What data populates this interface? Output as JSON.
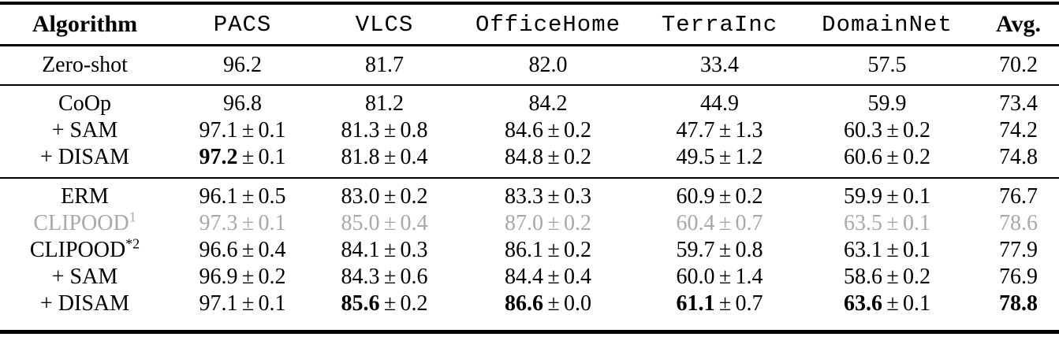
{
  "page": {
    "background": "#ffffff"
  },
  "colors": {
    "text": "#000000",
    "muted_row": "#a9a9a9",
    "rule": "#000000"
  },
  "symbols": {
    "plus_minus": "±"
  },
  "table": {
    "columns": [
      {
        "id": "algorithm",
        "label": "Algorithm",
        "font": "serif-bold"
      },
      {
        "id": "pacs",
        "label": "PACS",
        "font": "mono"
      },
      {
        "id": "vlcs",
        "label": "VLCS",
        "font": "mono"
      },
      {
        "id": "officehome",
        "label": "OfficeHome",
        "font": "mono"
      },
      {
        "id": "terrainc",
        "label": "TerraInc",
        "font": "mono"
      },
      {
        "id": "domainnet",
        "label": "DomainNet",
        "font": "mono"
      },
      {
        "id": "avg",
        "label": "Avg.",
        "font": "serif-bold"
      }
    ],
    "groups": [
      {
        "name": "zero-shot",
        "rows": [
          {
            "algorithm": {
              "text": "Zero-shot"
            },
            "muted": false,
            "cells": [
              {
                "mean": "96.2"
              },
              {
                "mean": "81.7"
              },
              {
                "mean": "82.0"
              },
              {
                "mean": "33.4"
              },
              {
                "mean": "57.5"
              },
              {
                "mean": "70.2"
              }
            ]
          }
        ]
      },
      {
        "name": "coop",
        "rows": [
          {
            "algorithm": {
              "text": "CoOp"
            },
            "muted": false,
            "cells": [
              {
                "mean": "96.8"
              },
              {
                "mean": "81.2"
              },
              {
                "mean": "84.2"
              },
              {
                "mean": "44.9"
              },
              {
                "mean": "59.9"
              },
              {
                "mean": "73.4"
              }
            ]
          },
          {
            "algorithm": {
              "text": "+ SAM"
            },
            "muted": false,
            "cells": [
              {
                "mean": "97.1",
                "std": "0.1"
              },
              {
                "mean": "81.3",
                "std": "0.8"
              },
              {
                "mean": "84.6",
                "std": "0.2"
              },
              {
                "mean": "47.7",
                "std": "1.3"
              },
              {
                "mean": "60.3",
                "std": "0.2"
              },
              {
                "mean": "74.2"
              }
            ]
          },
          {
            "algorithm": {
              "text": "+ DISAM"
            },
            "muted": false,
            "cells": [
              {
                "mean": "97.2",
                "std": "0.1",
                "bold": true
              },
              {
                "mean": "81.8",
                "std": "0.4"
              },
              {
                "mean": "84.8",
                "std": "0.2"
              },
              {
                "mean": "49.5",
                "std": "1.2"
              },
              {
                "mean": "60.6",
                "std": "0.2"
              },
              {
                "mean": "74.8"
              }
            ]
          }
        ]
      },
      {
        "name": "erm",
        "rows": [
          {
            "algorithm": {
              "text": "ERM"
            },
            "muted": false,
            "cells": [
              {
                "mean": "96.1",
                "std": "0.5"
              },
              {
                "mean": "83.0",
                "std": "0.2"
              },
              {
                "mean": "83.3",
                "std": "0.3"
              },
              {
                "mean": "60.9",
                "std": "0.2"
              },
              {
                "mean": "59.9",
                "std": "0.1"
              },
              {
                "mean": "76.7"
              }
            ]
          },
          {
            "algorithm": {
              "text": "CLIPOOD",
              "sup": "1"
            },
            "muted": true,
            "cells": [
              {
                "mean": "97.3",
                "std": "0.1"
              },
              {
                "mean": "85.0",
                "std": "0.4"
              },
              {
                "mean": "87.0",
                "std": "0.2"
              },
              {
                "mean": "60.4",
                "std": "0.7"
              },
              {
                "mean": "63.5",
                "std": "0.1"
              },
              {
                "mean": "78.6"
              }
            ]
          },
          {
            "algorithm": {
              "text": "CLIPOOD",
              "sup": "*2"
            },
            "muted": false,
            "cells": [
              {
                "mean": "96.6",
                "std": "0.4"
              },
              {
                "mean": "84.1",
                "std": "0.3"
              },
              {
                "mean": "86.1",
                "std": "0.2"
              },
              {
                "mean": "59.7",
                "std": "0.8"
              },
              {
                "mean": "63.1",
                "std": "0.1"
              },
              {
                "mean": "77.9"
              }
            ]
          },
          {
            "algorithm": {
              "text": "+ SAM"
            },
            "muted": false,
            "cells": [
              {
                "mean": "96.9",
                "std": "0.2"
              },
              {
                "mean": "84.3",
                "std": "0.6"
              },
              {
                "mean": "84.4",
                "std": "0.4"
              },
              {
                "mean": "60.0",
                "std": "1.4"
              },
              {
                "mean": "58.6",
                "std": "0.2"
              },
              {
                "mean": "76.9"
              }
            ]
          },
          {
            "algorithm": {
              "text": "+ DISAM"
            },
            "muted": false,
            "cells": [
              {
                "mean": "97.1",
                "std": "0.1"
              },
              {
                "mean": "85.6",
                "std": "0.2",
                "bold": true
              },
              {
                "mean": "86.6",
                "std": "0.0",
                "bold": true
              },
              {
                "mean": "61.1",
                "std": "0.7",
                "bold": true
              },
              {
                "mean": "63.6",
                "std": "0.1",
                "bold": true
              },
              {
                "mean": "78.8",
                "bold": true
              }
            ]
          }
        ]
      }
    ]
  }
}
